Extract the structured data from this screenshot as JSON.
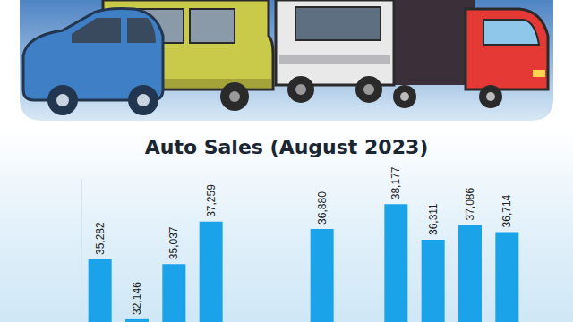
{
  "chart_data": {
    "type": "bar",
    "title": "Auto Sales (August 2023)",
    "categories": [
      null,
      null,
      null,
      null,
      null,
      null,
      null,
      null,
      null,
      null,
      null,
      null
    ],
    "values": [
      35282,
      32146,
      35037,
      37259,
      null,
      null,
      36880,
      null,
      38177,
      36311,
      37086,
      36714
    ],
    "value_labels": [
      "35,282",
      "32,146",
      "35,037",
      "37,259",
      null,
      null,
      "36,880",
      null,
      "38,177",
      "36,311",
      "37,086",
      "36,714"
    ],
    "color": "#1aa3e8",
    "ylim": [
      32000,
      39500
    ],
    "yticks": [],
    "data_labels": true,
    "tick_labels": false,
    "grid": false
  }
}
